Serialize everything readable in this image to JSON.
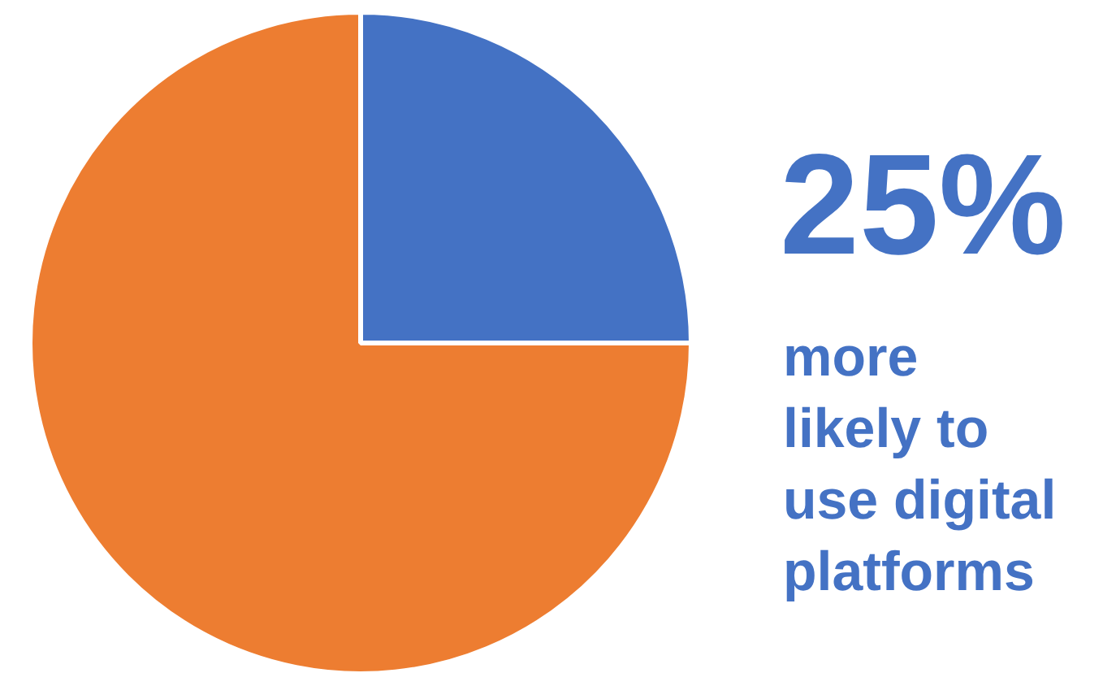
{
  "chart_data": {
    "type": "pie",
    "categories": [
      null,
      null
    ],
    "values": [
      25,
      75
    ],
    "colors": [
      "#4472c4",
      "#ed7d31"
    ],
    "annotations": [
      "25%",
      "more likely to use digital platforms"
    ],
    "legend": false
  }
}
